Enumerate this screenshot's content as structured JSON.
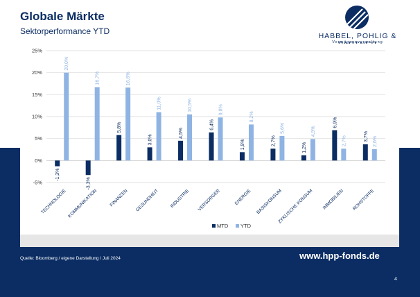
{
  "header": {
    "title": "Globale Märkte",
    "subtitle": "Sektorperformance YTD"
  },
  "logo": {
    "name": "HABBEL, POHLIG & PARTNER",
    "tagline": "Vermögensverwaltung"
  },
  "footer": {
    "source": "Quelle: Bloomberg / eigene Darstellung /   Juli 2024",
    "website": "www.hpp-fonds.de",
    "page": "4"
  },
  "colors": {
    "navy": "#0b2d63",
    "mtd": "#0b2d63",
    "ytd": "#8fb4e3",
    "grid": "#d9d9d9"
  },
  "chart_data": {
    "type": "bar",
    "categories": [
      "TECHNOLOGIE",
      "KOMMUNIKATION",
      "FINANZEN",
      "GESUNDHEIT",
      "INDUSTRIE",
      "VERSORGER",
      "ENERGIE",
      "BASISKONSUM",
      "ZYKLISCHE KONSUM",
      "IMMOBILIEN",
      "ROHSTOFFE"
    ],
    "series": [
      {
        "name": "MTD",
        "values": [
          -1.3,
          -3.3,
          5.8,
          3.0,
          4.5,
          6.4,
          1.9,
          2.7,
          1.2,
          6.9,
          3.7
        ],
        "labels": [
          "-1,3%",
          "-3,3%",
          "5,8%",
          "3,0%",
          "4,5%",
          "6,4%",
          "1,9%",
          "2,7%",
          "1,2%",
          "6,9%",
          "3,7%"
        ]
      },
      {
        "name": "YTD",
        "values": [
          20.0,
          16.7,
          16.6,
          11.0,
          10.5,
          9.8,
          8.2,
          5.6,
          4.9,
          2.7,
          2.6
        ],
        "labels": [
          "20,0%",
          "16,7%",
          "16,6%",
          "11,0%",
          "10,5%",
          "9,8%",
          "8,2%",
          "5,6%",
          "4,9%",
          "2,7%",
          "2,6%"
        ]
      }
    ],
    "yticks": [
      -5,
      0,
      5,
      10,
      15,
      20,
      25
    ],
    "ytick_labels": [
      "-5%",
      "0%",
      "5%",
      "10%",
      "15%",
      "20%",
      "25%"
    ],
    "ylim": [
      -5,
      25
    ],
    "grid": true,
    "legend_position": "bottom-center"
  }
}
